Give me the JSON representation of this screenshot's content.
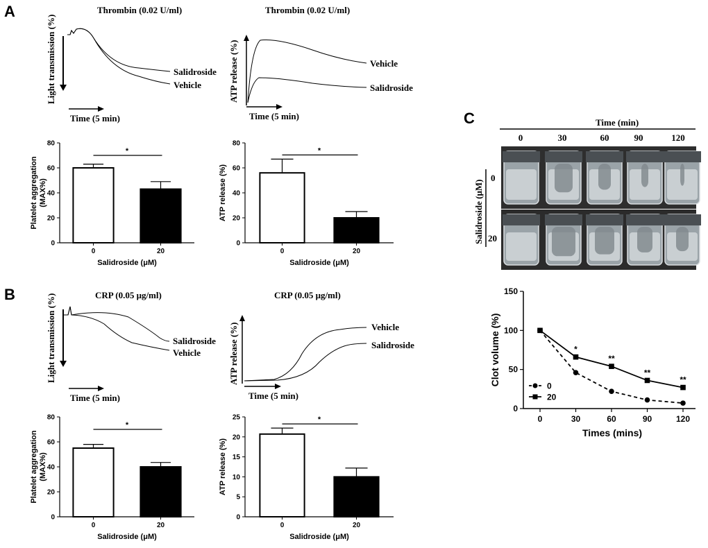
{
  "panels": {
    "a": {
      "letter": "A"
    },
    "b": {
      "letter": "B"
    },
    "c": {
      "letter": "C"
    }
  },
  "traces": {
    "a_light": {
      "title": "Thrombin (0.02 U/ml)",
      "ylabel": "Light transmission (%)",
      "xlabel": "Time (5 min)",
      "labels": [
        "Salidroside",
        "Vehicle"
      ]
    },
    "a_atp": {
      "title": "Thrombin (0.02 U/ml)",
      "ylabel": "ATP release (%)",
      "xlabel": "Time (5 min)",
      "labels": [
        "Vehicle",
        "Salidroside"
      ]
    },
    "b_light": {
      "title": "CRP (0.05 μg/ml)",
      "ylabel": "Light transmission (%)",
      "xlabel": "Time (5 min)",
      "labels": [
        "Salidroside",
        "Vehicle"
      ]
    },
    "b_atp": {
      "title": "CRP (0.05 μg/ml)",
      "ylabel": "ATP release (%)",
      "xlabel": "Time (5 min)",
      "labels": [
        "Vehicle",
        "Salidroside"
      ]
    }
  },
  "clot_photos": {
    "header": "Time (min)",
    "columns": [
      "0",
      "30",
      "60",
      "90",
      "120"
    ],
    "row_title": "Salidroside (μM)",
    "rows": [
      "0",
      "20"
    ]
  },
  "chart_data": [
    {
      "id": "a_aggregation",
      "type": "bar",
      "categories": [
        "0",
        "20"
      ],
      "values": [
        60,
        43
      ],
      "errors": [
        3,
        6
      ],
      "fills": [
        "#ffffff",
        "#000000"
      ],
      "ylabel": "Platelet aggregation (MAX%)",
      "xlabel": "Salidroside (μM)",
      "ylim": [
        0,
        80
      ],
      "yticks": [
        0,
        20,
        40,
        60,
        80
      ],
      "significance": "*"
    },
    {
      "id": "a_atp",
      "type": "bar",
      "categories": [
        "0",
        "20"
      ],
      "values": [
        56,
        20
      ],
      "errors": [
        11,
        5
      ],
      "fills": [
        "#ffffff",
        "#000000"
      ],
      "ylabel": "ATP release (%)",
      "xlabel": "Salidroside (μM)",
      "ylim": [
        0,
        80
      ],
      "yticks": [
        0,
        20,
        40,
        60,
        80
      ],
      "significance": "*"
    },
    {
      "id": "b_aggregation",
      "type": "bar",
      "categories": [
        "0",
        "20"
      ],
      "values": [
        55,
        40
      ],
      "errors": [
        3,
        3.5
      ],
      "fills": [
        "#ffffff",
        "#000000"
      ],
      "ylabel": "Platelet aggregation (MAX%)",
      "xlabel": "Salidroside (μM)",
      "ylim": [
        0,
        80
      ],
      "yticks": [
        0,
        20,
        40,
        60,
        80
      ],
      "significance": "*"
    },
    {
      "id": "b_atp",
      "type": "bar",
      "categories": [
        "0",
        "20"
      ],
      "values": [
        20.7,
        10
      ],
      "errors": [
        1.5,
        2.2
      ],
      "fills": [
        "#ffffff",
        "#000000"
      ],
      "ylabel": "ATP release (%)",
      "xlabel": "Salidroside (μM)",
      "ylim": [
        0,
        25
      ],
      "yticks": [
        0,
        5,
        10,
        15,
        20,
        25
      ],
      "significance": "*"
    },
    {
      "id": "c_clot",
      "type": "line",
      "x": [
        0,
        30,
        60,
        90,
        120
      ],
      "xticks": [
        0,
        30,
        60,
        90,
        120
      ],
      "series": [
        {
          "name": "0",
          "values": [
            100,
            46,
            22,
            11,
            7
          ],
          "marker": "circle",
          "dashed": true
        },
        {
          "name": "20",
          "values": [
            100,
            66,
            54,
            36,
            27
          ],
          "marker": "square",
          "dashed": false
        }
      ],
      "annotations": [
        "",
        "*",
        "**",
        "**",
        "**"
      ],
      "ylabel": "Clot volume (%)",
      "xlabel": "Times (mins)",
      "ylim": [
        0,
        150
      ],
      "yticks": [
        0,
        50,
        100,
        150
      ],
      "xlim": [
        0,
        120
      ],
      "legend": "bottom-left"
    }
  ]
}
